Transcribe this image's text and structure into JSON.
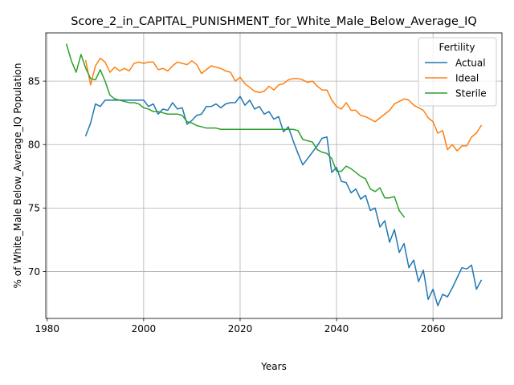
{
  "chart_data": {
    "type": "line",
    "title": "Score_2_in_CAPITAL_PUNISHMENT_for_White_Male_Below_Average_IQ",
    "xlabel": "Years",
    "ylabel": "% of White_Male Below_Average_IQ Population",
    "xlim": [
      1979.7,
      2074.3
    ],
    "ylim": [
      66.3,
      88.8
    ],
    "xticks": [
      1980,
      2000,
      2020,
      2040,
      2060
    ],
    "yticks": [
      70,
      75,
      80,
      85
    ],
    "grid": true,
    "legend": {
      "title": "Fertility",
      "placement": "top-right"
    },
    "series": [
      {
        "name": "Actual",
        "color": "#1f77b4",
        "x": [
          1988,
          1989,
          1990,
          1991,
          1992,
          1993,
          1994,
          1995,
          1996,
          1997,
          1998,
          1999,
          2000,
          2001,
          2002,
          2003,
          2004,
          2005,
          2006,
          2007,
          2008,
          2009,
          2010,
          2011,
          2012,
          2013,
          2014,
          2015,
          2016,
          2017,
          2018,
          2019,
          2020,
          2021,
          2022,
          2023,
          2024,
          2025,
          2026,
          2027,
          2028,
          2029,
          2030,
          2031,
          2032,
          2033,
          2034,
          2035,
          2036,
          2037,
          2038,
          2039,
          2040,
          2041,
          2042,
          2043,
          2044,
          2045,
          2046,
          2047,
          2048,
          2049,
          2050,
          2051,
          2052,
          2053,
          2054,
          2055,
          2056,
          2057,
          2058,
          2059,
          2060,
          2061,
          2062,
          2063,
          2064,
          2065,
          2066,
          2067,
          2068,
          2069,
          2070
        ],
        "values": [
          80.7,
          81.7,
          83.2,
          83.0,
          83.5,
          83.5,
          83.5,
          83.5,
          83.5,
          83.5,
          83.5,
          83.5,
          83.5,
          83.0,
          83.2,
          82.4,
          82.8,
          82.7,
          83.3,
          82.8,
          82.9,
          81.6,
          81.9,
          82.3,
          82.4,
          83.0,
          83.0,
          83.2,
          82.9,
          83.2,
          83.3,
          83.3,
          83.8,
          83.1,
          83.5,
          82.8,
          83.0,
          82.4,
          82.6,
          82.0,
          82.2,
          81.0,
          81.4,
          80.3,
          79.3,
          78.4,
          78.9,
          79.4,
          79.9,
          80.5,
          80.6,
          77.8,
          78.2,
          77.1,
          77.0,
          76.2,
          76.5,
          75.7,
          76.0,
          74.8,
          75.0,
          73.5,
          74.0,
          72.3,
          73.3,
          71.5,
          72.2,
          70.3,
          70.9,
          69.2,
          70.1,
          67.8,
          68.6,
          67.3,
          68.2,
          68.0,
          68.7,
          69.5,
          70.3,
          70.2,
          70.5,
          68.6,
          69.3
        ]
      },
      {
        "name": "Ideal",
        "color": "#ff7f0e",
        "x": [
          1988,
          1989,
          1990,
          1991,
          1992,
          1993,
          1994,
          1995,
          1996,
          1997,
          1998,
          1999,
          2000,
          2001,
          2002,
          2003,
          2004,
          2005,
          2006,
          2007,
          2008,
          2009,
          2010,
          2011,
          2012,
          2013,
          2014,
          2015,
          2016,
          2017,
          2018,
          2019,
          2020,
          2021,
          2022,
          2023,
          2024,
          2025,
          2026,
          2027,
          2028,
          2029,
          2030,
          2031,
          2032,
          2033,
          2034,
          2035,
          2036,
          2037,
          2038,
          2039,
          2040,
          2041,
          2042,
          2043,
          2044,
          2045,
          2046,
          2047,
          2048,
          2049,
          2050,
          2051,
          2052,
          2053,
          2054,
          2055,
          2056,
          2057,
          2058,
          2059,
          2060,
          2061,
          2062,
          2063,
          2064,
          2065,
          2066,
          2067,
          2068,
          2069,
          2070
        ],
        "values": [
          86.6,
          84.7,
          86.2,
          86.8,
          86.5,
          85.7,
          86.1,
          85.8,
          86.0,
          85.8,
          86.4,
          86.5,
          86.4,
          86.5,
          86.5,
          85.9,
          86.0,
          85.8,
          86.2,
          86.5,
          86.4,
          86.3,
          86.6,
          86.3,
          85.6,
          85.9,
          86.2,
          86.1,
          86.0,
          85.8,
          85.7,
          85.0,
          85.3,
          84.8,
          84.5,
          84.2,
          84.1,
          84.2,
          84.6,
          84.3,
          84.7,
          84.8,
          85.1,
          85.2,
          85.2,
          85.1,
          84.9,
          85.0,
          84.6,
          84.3,
          84.3,
          83.5,
          83.0,
          82.8,
          83.3,
          82.7,
          82.7,
          82.3,
          82.2,
          82.0,
          81.8,
          82.1,
          82.4,
          82.7,
          83.2,
          83.4,
          83.6,
          83.5,
          83.1,
          82.9,
          82.7,
          82.1,
          81.8,
          80.9,
          81.1,
          79.6,
          80.0,
          79.5,
          79.9,
          79.9,
          80.6,
          80.9,
          81.5
        ]
      },
      {
        "name": "Sterile",
        "color": "#2ca02c",
        "x": [
          1984,
          1985,
          1986,
          1987,
          1988,
          1989,
          1990,
          1991,
          1992,
          1993,
          1994,
          1995,
          1996,
          1997,
          1998,
          1999,
          2000,
          2001,
          2002,
          2003,
          2004,
          2005,
          2006,
          2007,
          2008,
          2009,
          2010,
          2011,
          2012,
          2013,
          2014,
          2015,
          2016,
          2017,
          2018,
          2019,
          2020,
          2021,
          2022,
          2023,
          2024,
          2025,
          2026,
          2027,
          2028,
          2029,
          2030,
          2031,
          2032,
          2033,
          2034,
          2035,
          2036,
          2037,
          2038,
          2039,
          2040,
          2041,
          2042,
          2043,
          2044,
          2045,
          2046,
          2047,
          2048,
          2049,
          2050,
          2051,
          2052,
          2053,
          2054
        ],
        "values": [
          87.9,
          86.6,
          85.7,
          87.1,
          86.0,
          85.2,
          85.1,
          85.9,
          85.0,
          83.9,
          83.6,
          83.5,
          83.4,
          83.3,
          83.3,
          83.2,
          82.9,
          82.8,
          82.6,
          82.6,
          82.5,
          82.4,
          82.4,
          82.4,
          82.3,
          81.8,
          81.7,
          81.5,
          81.4,
          81.3,
          81.3,
          81.3,
          81.2,
          81.2,
          81.2,
          81.2,
          81.2,
          81.2,
          81.2,
          81.2,
          81.2,
          81.2,
          81.2,
          81.2,
          81.2,
          81.2,
          81.2,
          81.2,
          81.1,
          80.4,
          80.3,
          80.2,
          79.6,
          79.4,
          79.3,
          78.9,
          77.9,
          77.9,
          78.3,
          78.1,
          77.8,
          77.5,
          77.3,
          76.5,
          76.3,
          76.6,
          75.8,
          75.8,
          75.9,
          74.8,
          74.3
        ]
      }
    ]
  }
}
